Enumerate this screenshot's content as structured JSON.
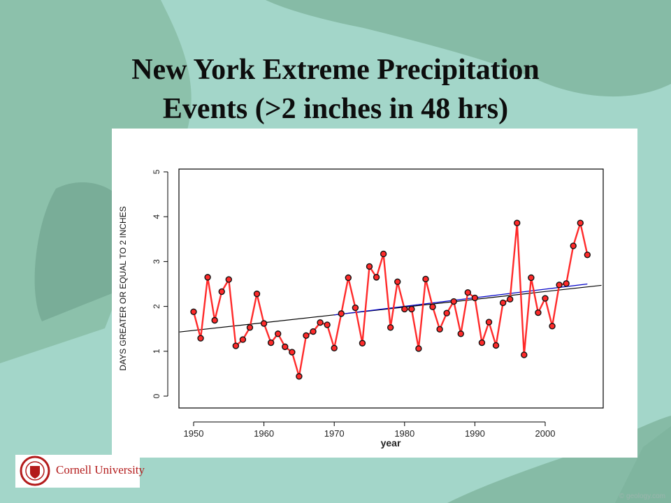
{
  "slide": {
    "title_line1": "New York Extreme Precipitation",
    "title_line2": "Events (>2 inches in 48 hrs)",
    "logo_text": "Cornell University",
    "credit": "© geology.com"
  },
  "colors": {
    "sea": "#9fd3c6",
    "land": "#7fb59f",
    "series_line": "#ff2a2a",
    "trend_black": "#000000",
    "trend_blue": "#0000c8",
    "logo_red": "#b31b1b"
  },
  "chart_data": {
    "type": "line",
    "title": "",
    "xlabel": "year",
    "ylabel": "DAYS GREATER OR EQUAL TO 2 INCHES",
    "xlim": [
      1950,
      2007
    ],
    "ylim": [
      0,
      5
    ],
    "xticks": [
      1950,
      1960,
      1970,
      1980,
      1990,
      2000
    ],
    "yticks": [
      0,
      1,
      2,
      3,
      4,
      5
    ],
    "grid": false,
    "legend": "none",
    "x": [
      1950,
      1951,
      1952,
      1953,
      1954,
      1955,
      1956,
      1957,
      1958,
      1959,
      1960,
      1961,
      1962,
      1963,
      1964,
      1965,
      1966,
      1967,
      1968,
      1969,
      1970,
      1971,
      1972,
      1973,
      1974,
      1975,
      1976,
      1977,
      1978,
      1979,
      1980,
      1981,
      1982,
      1983,
      1984,
      1985,
      1986,
      1987,
      1988,
      1989,
      1990,
      1991,
      1992,
      1993,
      1994,
      1995,
      1996,
      1997,
      1998,
      1999,
      2000,
      2001,
      2002,
      2003,
      2004,
      2005,
      2006
    ],
    "series": [
      {
        "values": [
          1.88,
          1.29,
          2.65,
          1.69,
          2.33,
          2.6,
          1.12,
          1.26,
          1.53,
          2.28,
          1.62,
          1.19,
          1.39,
          1.1,
          0.98,
          0.44,
          1.35,
          1.44,
          1.64,
          1.59,
          1.07,
          1.84,
          2.64,
          1.97,
          1.18,
          2.89,
          2.65,
          3.17,
          1.53,
          2.55,
          1.94,
          1.94,
          1.06,
          2.61,
          1.99,
          1.49,
          1.85,
          2.11,
          1.39,
          2.31,
          2.19,
          1.19,
          1.65,
          1.13,
          2.08,
          2.16,
          3.86,
          0.92,
          2.64,
          1.86,
          2.18,
          1.56,
          2.48,
          2.51,
          3.35,
          3.86,
          3.15
        ]
      }
    ],
    "trend_lines": [
      {
        "x": [
          1948,
          2008
        ],
        "y": [
          1.43,
          2.47
        ]
      },
      {
        "x": [
          1970,
          2006
        ],
        "y": [
          1.81,
          2.5
        ]
      }
    ]
  }
}
